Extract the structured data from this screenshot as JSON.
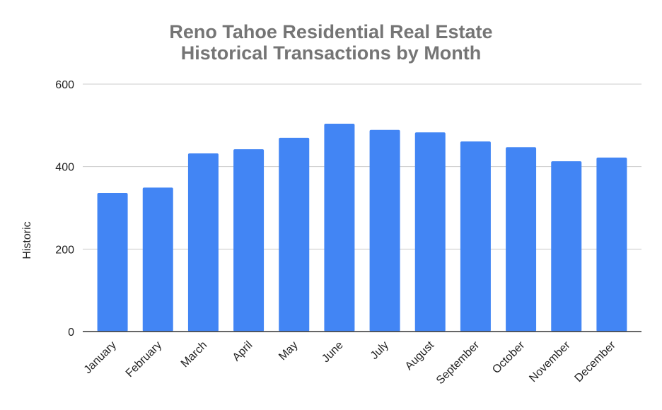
{
  "chart_data": {
    "type": "bar",
    "title": [
      "Reno Tahoe Residential Real Estate",
      "Historical Transactions by Month"
    ],
    "y_label": "Historic",
    "categories": [
      "January",
      "February",
      "March",
      "April",
      "May",
      "June",
      "July",
      "August",
      "September",
      "October",
      "November",
      "December"
    ],
    "values": [
      336,
      349,
      432,
      442,
      470,
      504,
      489,
      483,
      461,
      447,
      413,
      422
    ],
    "color": "#4285f4",
    "ylim": [
      0,
      600
    ],
    "yticks": [
      0,
      200,
      400,
      600
    ],
    "grid": true
  }
}
